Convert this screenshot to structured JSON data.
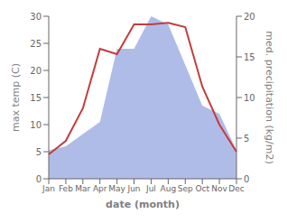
{
  "chart_data": {
    "type": "line",
    "xlabel": "date (month)",
    "ylabel": "max temp (C)",
    "y2label": "med. precipitation (kg/m2)",
    "categories": [
      "Jan",
      "Feb",
      "Mar",
      "Apr",
      "May",
      "Jun",
      "Jul",
      "Aug",
      "Sep",
      "Oct",
      "Nov",
      "Dec"
    ],
    "series": [
      {
        "type": "area",
        "axis": "y2",
        "color": "#b0bce8",
        "values": [
          3.5,
          4.0,
          5.5,
          7.0,
          16.0,
          16.0,
          20.0,
          19.0,
          14.0,
          9.0,
          8.0,
          3.5
        ]
      },
      {
        "type": "line",
        "color": "#c43c3c",
        "values": [
          4.5,
          7.0,
          13.0,
          24.0,
          23.0,
          28.5,
          28.5,
          28.8,
          28.0,
          17.0,
          10.0,
          5.0
        ]
      }
    ],
    "ylim": [
      0,
      30
    ],
    "yticks": [
      0,
      5,
      10,
      15,
      20,
      25,
      30
    ],
    "y2lim": [
      0,
      20
    ],
    "y2ticks": [
      0,
      5,
      10,
      15,
      20
    ],
    "grid": false
  }
}
